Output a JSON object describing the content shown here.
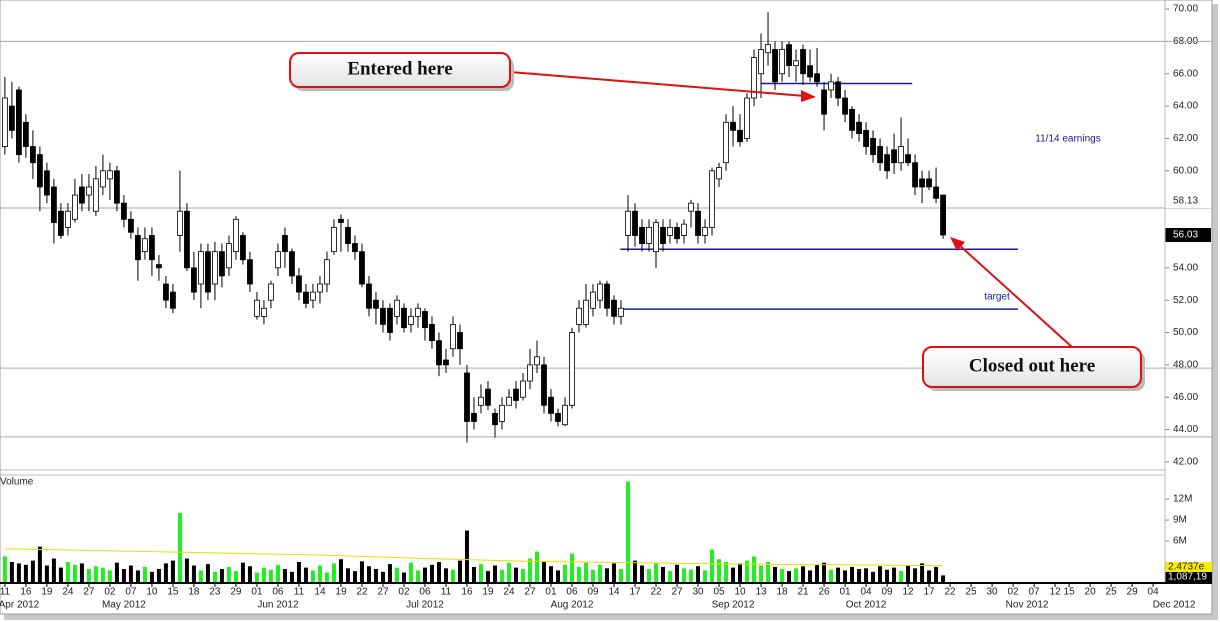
{
  "chart_data": {
    "type": "candlestick",
    "xlim": [
      -0.7,
      165.7
    ],
    "ylim": [
      41.5,
      70.56
    ],
    "yticks": [
      {
        "value": 70,
        "label": "70.00"
      },
      {
        "value": 68,
        "label": "68.00"
      },
      {
        "value": 66,
        "label": "66.00"
      },
      {
        "value": 64,
        "label": "64.00"
      },
      {
        "value": 62,
        "label": "62.00"
      },
      {
        "value": 60,
        "label": "60.00"
      },
      {
        "value": 58,
        "label": "58.00"
      },
      {
        "value": 56,
        "label": "56.00"
      },
      {
        "value": 54,
        "label": "54.00"
      },
      {
        "value": 52,
        "label": "52.00"
      },
      {
        "value": 50,
        "label": "50.00"
      },
      {
        "value": 48,
        "label": "48.00"
      },
      {
        "value": 46,
        "label": "46.00"
      },
      {
        "value": 44,
        "label": "44.00"
      },
      {
        "value": 42,
        "label": "42.00"
      }
    ],
    "xticks": [
      {
        "value": 0,
        "label": "11"
      },
      {
        "value": 3,
        "label": "16"
      },
      {
        "value": 6,
        "label": "19"
      },
      {
        "value": 9,
        "label": "24"
      },
      {
        "value": 12,
        "label": "27"
      },
      {
        "value": 15,
        "label": "02"
      },
      {
        "value": 18,
        "label": "07"
      },
      {
        "value": 21,
        "label": "10"
      },
      {
        "value": 24,
        "label": "15"
      },
      {
        "value": 27,
        "label": "18"
      },
      {
        "value": 30,
        "label": "23"
      },
      {
        "value": 33,
        "label": "29"
      },
      {
        "value": 36,
        "label": "01"
      },
      {
        "value": 39,
        "label": "06"
      },
      {
        "value": 42,
        "label": "11"
      },
      {
        "value": 45,
        "label": "14"
      },
      {
        "value": 48,
        "label": "19"
      },
      {
        "value": 51,
        "label": "22"
      },
      {
        "value": 54,
        "label": "27"
      },
      {
        "value": 57,
        "label": "02"
      },
      {
        "value": 60,
        "label": "06"
      },
      {
        "value": 63,
        "label": "11"
      },
      {
        "value": 66,
        "label": "16"
      },
      {
        "value": 69,
        "label": "19"
      },
      {
        "value": 72,
        "label": "24"
      },
      {
        "value": 75,
        "label": "27"
      },
      {
        "value": 78,
        "label": "01"
      },
      {
        "value": 81,
        "label": "06"
      },
      {
        "value": 84,
        "label": "09"
      },
      {
        "value": 87,
        "label": "14"
      },
      {
        "value": 90,
        "label": "17"
      },
      {
        "value": 93,
        "label": "22"
      },
      {
        "value": 96,
        "label": "27"
      },
      {
        "value": 99,
        "label": "30"
      },
      {
        "value": 102,
        "label": "05"
      },
      {
        "value": 105,
        "label": "10"
      },
      {
        "value": 108,
        "label": "13"
      },
      {
        "value": 111,
        "label": "18"
      },
      {
        "value": 114,
        "label": "21"
      },
      {
        "value": 117,
        "label": "26"
      },
      {
        "value": 120,
        "label": "01"
      },
      {
        "value": 123,
        "label": "04"
      },
      {
        "value": 126,
        "label": "09"
      },
      {
        "value": 129,
        "label": "12"
      },
      {
        "value": 132,
        "label": "17"
      },
      {
        "value": 135,
        "label": "22"
      },
      {
        "value": 138,
        "label": "25"
      },
      {
        "value": 141,
        "label": "30"
      },
      {
        "value": 144,
        "label": "02"
      },
      {
        "value": 147,
        "label": "07"
      },
      {
        "value": 150,
        "label": "12"
      },
      {
        "value": 152,
        "label": "15"
      },
      {
        "value": 155,
        "label": "20"
      },
      {
        "value": 158,
        "label": "25"
      },
      {
        "value": 161,
        "label": "29"
      },
      {
        "value": 164,
        "label": "04"
      }
    ],
    "month_ticks": [
      {
        "value": 2,
        "label": "Apr 2012"
      },
      {
        "value": 17,
        "label": "May 2012"
      },
      {
        "value": 39,
        "label": "Jun 2012"
      },
      {
        "value": 60,
        "label": "Jul 2012"
      },
      {
        "value": 81,
        "label": "Aug 2012"
      },
      {
        "value": 104,
        "label": "Sep 2012"
      },
      {
        "value": 123,
        "label": "Oct 2012"
      },
      {
        "value": 146,
        "label": "Nov 2012"
      },
      {
        "value": 167,
        "label": "Dec 2012"
      }
    ],
    "open": [
      61.5,
      64,
      65,
      63,
      61.5,
      61,
      60,
      59,
      57.5,
      56.5,
      57,
      59,
      58.5,
      57.5,
      59,
      59.5,
      60,
      58,
      57,
      56,
      55,
      56,
      54.2,
      53,
      52.5,
      56,
      57.5,
      54,
      53,
      55,
      53,
      55,
      54,
      55,
      56,
      54.5,
      51,
      51,
      52,
      54,
      56,
      55,
      53.5,
      52.5,
      52,
      52.5,
      53,
      55,
      57,
      56.5,
      55.5,
      55,
      53,
      52,
      51.5,
      51.5,
      51,
      51.5,
      50.5,
      51,
      51.3,
      50.5,
      49.5,
      48.3,
      49,
      50,
      47.5,
      45,
      45.5,
      46.5,
      45,
      44.5,
      45.5,
      46.5,
      46,
      47,
      48,
      48,
      46,
      45,
      44.3,
      45.5,
      50.5,
      50.5,
      51.5,
      52,
      53,
      52,
      51,
      56,
      57.5,
      56.5,
      55.5,
      55,
      56.5,
      56,
      56.5,
      56,
      57.5,
      57.5,
      56,
      56.5,
      59.5,
      60.5,
      63,
      62.5,
      62,
      64.5,
      66,
      67.3,
      67.5,
      66,
      67.8,
      66.5,
      67.5,
      66.5,
      66,
      65,
      65,
      65.5,
      64.5,
      63.8,
      63,
      62.5,
      62,
      61.5,
      61,
      61.3,
      60.5,
      61,
      60.5,
      59.5,
      59.5,
      59,
      58.5
    ],
    "high": [
      65.8,
      65.5,
      65.2,
      63.5,
      62.5,
      61.5,
      60.5,
      59.5,
      58,
      58,
      59.5,
      59.8,
      59.8,
      60.3,
      61,
      60.5,
      60.3,
      58.5,
      57.5,
      56.5,
      56.5,
      56.5,
      54.8,
      53.5,
      53,
      60,
      58,
      55,
      55.5,
      55.5,
      55.6,
      55.5,
      56,
      57.2,
      56.2,
      55,
      52.5,
      52,
      53.2,
      55.5,
      56.5,
      55.2,
      54,
      53,
      53,
      53.5,
      55,
      57,
      57.3,
      57,
      56,
      55.5,
      53.5,
      52.5,
      52,
      51.8,
      52.3,
      51.8,
      51.5,
      51.8,
      51.5,
      51,
      50,
      49,
      51,
      50.5,
      48,
      46,
      46.8,
      47,
      45.3,
      46,
      46.5,
      47,
      47.5,
      49,
      49.5,
      48.5,
      46.5,
      45.3,
      46,
      50.3,
      52,
      53,
      53,
      53.2,
      53.2,
      52.3,
      52,
      58.5,
      58,
      57,
      57,
      57,
      57,
      57,
      56.8,
      57,
      58.2,
      58,
      57,
      60.2,
      60.5,
      63.5,
      64,
      63.5,
      64.8,
      67.5,
      68.5,
      69.8,
      68,
      68,
      68,
      67.5,
      67.8,
      67.5,
      67.6,
      65.5,
      66,
      65.8,
      65,
      64,
      63.5,
      63,
      62.5,
      62,
      61.5,
      62.3,
      63.3,
      62,
      61,
      60,
      60,
      60.2,
      58.5
    ],
    "low": [
      61,
      62,
      60.5,
      60.8,
      59.5,
      57.5,
      58,
      55.5,
      55.8,
      56,
      56.8,
      57.5,
      57.5,
      57.2,
      58.5,
      58.2,
      57.5,
      56.5,
      55.8,
      53.2,
      54.5,
      53.5,
      53.2,
      51.5,
      51.2,
      55,
      53.8,
      52,
      51.5,
      52,
      52,
      52.8,
      53.5,
      54.5,
      54.2,
      52.5,
      50.8,
      50.5,
      51.5,
      53.5,
      54,
      53,
      52,
      51.5,
      51.5,
      51.8,
      52.5,
      54.8,
      55,
      55,
      54.5,
      52.8,
      51,
      50.5,
      50,
      49.5,
      50.5,
      50,
      50,
      50.3,
      49.5,
      49,
      47.3,
      47.5,
      48.5,
      48,
      43.2,
      44,
      45,
      45.2,
      43.5,
      44,
      45.5,
      45.3,
      45.8,
      46.5,
      47.5,
      45,
      44.5,
      44.2,
      44.2,
      45.3,
      50,
      50.3,
      51,
      51.5,
      51,
      50.5,
      50.5,
      55,
      55.3,
      55,
      55,
      54,
      55,
      55.5,
      55.5,
      55.5,
      56.5,
      55.5,
      55.5,
      56,
      59,
      60,
      61.5,
      61.5,
      61.8,
      64,
      64.5,
      66.5,
      65,
      65.5,
      65.8,
      65.5,
      65.3,
      65.5,
      65.2,
      62.5,
      64.5,
      64,
      63,
      62,
      61.8,
      61,
      60.5,
      60,
      59.5,
      59.8,
      60,
      60.3,
      58.5,
      58,
      58.8,
      58,
      55.8
    ],
    "close": [
      64.5,
      62.5,
      61,
      61.5,
      60.5,
      59,
      58.5,
      56.8,
      56,
      57.5,
      58.5,
      58,
      59,
      59.5,
      60,
      60,
      58,
      57,
      56.2,
      54.5,
      55.8,
      54.5,
      54,
      52,
      51.5,
      57.5,
      54,
      52.5,
      55,
      52.5,
      55,
      53.5,
      55.5,
      57,
      54.5,
      53,
      52,
      51.5,
      53,
      55,
      55,
      53.5,
      52.5,
      51.8,
      52.5,
      53,
      54.5,
      56.5,
      56.8,
      55.5,
      55,
      53,
      51.5,
      51.5,
      50.5,
      50,
      52,
      50.3,
      51,
      51.5,
      50.3,
      49.5,
      48,
      48,
      50.5,
      49,
      44.5,
      44.5,
      46,
      45.5,
      44.3,
      45.5,
      46,
      45.8,
      47,
      48,
      48.5,
      45.5,
      45,
      44.5,
      45.5,
      50,
      51.5,
      52,
      52.5,
      53,
      51.5,
      51,
      51.5,
      57.5,
      56,
      55.5,
      56.5,
      56.8,
      55.5,
      56.5,
      55.8,
      56.7,
      58,
      56,
      56.5,
      60,
      60.2,
      63,
      62.5,
      61.8,
      64.5,
      67,
      67.5,
      67.8,
      65.5,
      67.5,
      66.5,
      66.8,
      66,
      65.8,
      65.5,
      63.5,
      65.5,
      64.5,
      63.5,
      62.5,
      62.3,
      61.5,
      61,
      60.5,
      60,
      60.5,
      61.5,
      60.5,
      59,
      59,
      59,
      58.3,
      56.03
    ],
    "up_color": "#ffffff",
    "down_color": "#000000",
    "hlines": [
      68,
      57.7,
      47.8,
      43.55
    ],
    "hline_color": "#aaaaaa",
    "levels": [
      {
        "value": 65.4,
        "from": 108,
        "to": 129.6
      },
      {
        "value": 55.15,
        "from": 87.9,
        "to": 144.7
      },
      {
        "value": 51.45,
        "from": 87.9,
        "to": 144.7
      }
    ],
    "level_color": "#1a1a9a",
    "price_labels": [
      58.13,
      56.03
    ],
    "volume": {
      "ylim": [
        0,
        15.3
      ],
      "yticks": [
        {
          "value": 12,
          "label": "12M"
        },
        {
          "value": 9,
          "label": "9M"
        },
        {
          "value": 6,
          "label": "6M"
        }
      ],
      "values": [
        3.8,
        3.0,
        2.8,
        2.6,
        3.2,
        5.2,
        2.5,
        3.5,
        2.2,
        3.0,
        2.6,
        2.8,
        2.0,
        2.4,
        2.2,
        1.8,
        2.9,
        2.0,
        2.5,
        1.8,
        2.3,
        1.6,
        2.0,
        2.8,
        3.2,
        10.0,
        3.5,
        2.5,
        1.8,
        2.7,
        1.6,
        2.0,
        2.3,
        1.7,
        2.9,
        2.4,
        1.5,
        2.2,
        1.9,
        2.6,
        2.0,
        1.6,
        3.0,
        2.2,
        1.8,
        2.5,
        1.5,
        2.8,
        3.4,
        2.1,
        1.7,
        3.1,
        2.4,
        2.0,
        1.6,
        2.7,
        2.2,
        1.5,
        2.9,
        1.8,
        2.2,
        2.6,
        3.0,
        2.1,
        1.9,
        3.2,
        7.5,
        2.3,
        2.7,
        1.7,
        2.5,
        1.9,
        2.9,
        2.2,
        2.0,
        3.5,
        4.5,
        3.0,
        2.4,
        1.8,
        2.6,
        4.2,
        2.3,
        2.9,
        1.9,
        2.6,
        2.1,
        2.8,
        2.0,
        14.5,
        3.2,
        2.5,
        2.0,
        2.8,
        2.3,
        1.7,
        2.6,
        2.1,
        1.9,
        2.4,
        1.8,
        4.8,
        3.4,
        3.0,
        2.2,
        2.8,
        3.2,
        3.8,
        2.5,
        3.0,
        2.3,
        2.0,
        1.7,
        2.1,
        2.4,
        1.8,
        2.6,
        2.9,
        1.9,
        2.2,
        1.8,
        2.3,
        2.0,
        2.1,
        1.6,
        2.4,
        1.9,
        2.2,
        1.7,
        2.5,
        2.1,
        2.8,
        1.8,
        2.3,
        1.087
      ],
      "up_color": "#22ee22",
      "down_color": "#000000",
      "labels": [
        "2.4737e",
        "1,087,19"
      ]
    },
    "volume_ma": {
      "x": [
        0,
        15,
        30,
        45,
        60,
        75,
        90,
        105,
        120,
        134
      ],
      "values": [
        4.9,
        4.6,
        4.3,
        4.0,
        3.5,
        3.1,
        2.9,
        2.7,
        2.6,
        2.47
      ],
      "color": "#e8e000"
    },
    "annotations": {
      "entered": "Entered here",
      "closed": "Closed out here",
      "earnings": "11/14 earnings",
      "target": "target",
      "volume": "Volume"
    }
  }
}
